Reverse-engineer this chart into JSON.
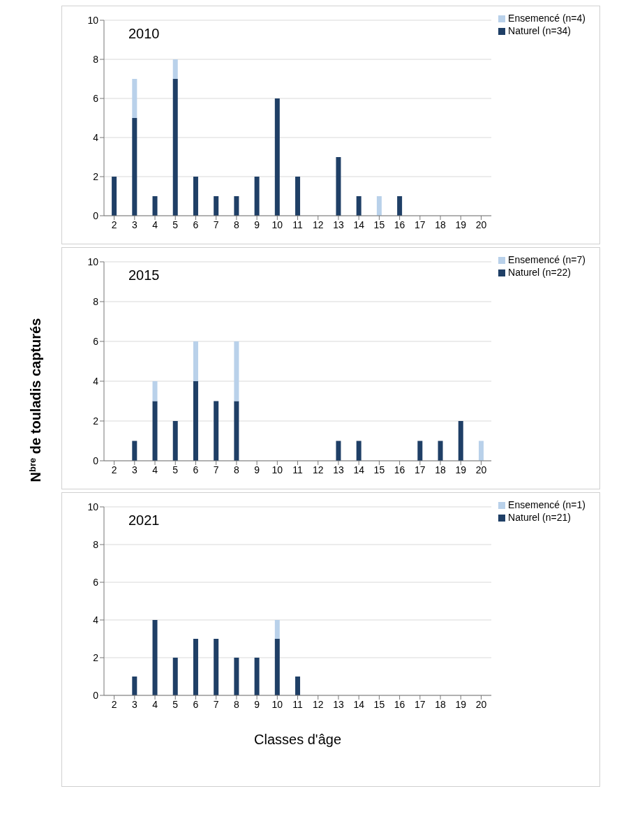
{
  "chart_data": [
    {
      "type": "bar",
      "title": "2010",
      "categories": [
        "2",
        "3",
        "4",
        "5",
        "6",
        "7",
        "8",
        "9",
        "10",
        "11",
        "12",
        "13",
        "14",
        "15",
        "16",
        "17",
        "18",
        "19",
        "20"
      ],
      "stacked": true,
      "series": [
        {
          "name": "Naturel (n=34)",
          "color": "#1f3f66",
          "values": [
            2,
            5,
            1,
            7,
            2,
            1,
            1,
            2,
            6,
            2,
            0,
            3,
            1,
            0,
            1,
            0,
            0,
            0,
            0
          ]
        },
        {
          "name": "Ensemencé (n=4)",
          "color": "#b9d1ea",
          "values": [
            0,
            2,
            0,
            1,
            0,
            0,
            0,
            0,
            0,
            0,
            0,
            0,
            0,
            1,
            0,
            0,
            0,
            0,
            0
          ]
        }
      ],
      "ylim": [
        0,
        10
      ],
      "yticks": [
        0,
        2,
        4,
        6,
        8,
        10
      ],
      "grid": "y",
      "legend": "top right"
    },
    {
      "type": "bar",
      "title": "2015",
      "ylabel": "N$^{bre}$ de touladis capturés",
      "categories": [
        "2",
        "3",
        "4",
        "5",
        "6",
        "7",
        "8",
        "9",
        "10",
        "11",
        "12",
        "13",
        "14",
        "15",
        "16",
        "17",
        "18",
        "19",
        "20"
      ],
      "stacked": true,
      "series": [
        {
          "name": "Naturel (n=22)",
          "color": "#1f3f66",
          "values": [
            0,
            1,
            3,
            2,
            4,
            3,
            3,
            0,
            0,
            0,
            0,
            1,
            1,
            0,
            0,
            1,
            1,
            2,
            0
          ]
        },
        {
          "name": "Ensemencé (n=7)",
          "color": "#b9d1ea",
          "values": [
            0,
            0,
            1,
            0,
            2,
            0,
            3,
            0,
            0,
            0,
            0,
            0,
            0,
            0,
            0,
            0,
            0,
            0,
            1
          ]
        }
      ],
      "ylim": [
        0,
        10
      ],
      "yticks": [
        0,
        2,
        4,
        6,
        8,
        10
      ],
      "grid": "y",
      "legend": "top right"
    },
    {
      "type": "bar",
      "title": "2021",
      "xlabel": "Classes d'âge",
      "categories": [
        "2",
        "3",
        "4",
        "5",
        "6",
        "7",
        "8",
        "9",
        "10",
        "11",
        "12",
        "13",
        "14",
        "15",
        "16",
        "17",
        "18",
        "19",
        "20"
      ],
      "stacked": true,
      "series": [
        {
          "name": "Naturel (n=21)",
          "color": "#1f3f66",
          "values": [
            0,
            1,
            4,
            2,
            3,
            3,
            2,
            2,
            3,
            1,
            0,
            0,
            0,
            0,
            0,
            0,
            0,
            0,
            0
          ]
        },
        {
          "name": "Ensemencé (n=1)",
          "color": "#b9d1ea",
          "values": [
            0,
            0,
            0,
            0,
            0,
            0,
            0,
            0,
            1,
            0,
            0,
            0,
            0,
            0,
            0,
            0,
            0,
            0,
            0
          ]
        }
      ],
      "ylim": [
        0,
        10
      ],
      "yticks": [
        0,
        2,
        4,
        6,
        8,
        10
      ],
      "grid": "y",
      "legend": "top right"
    }
  ]
}
